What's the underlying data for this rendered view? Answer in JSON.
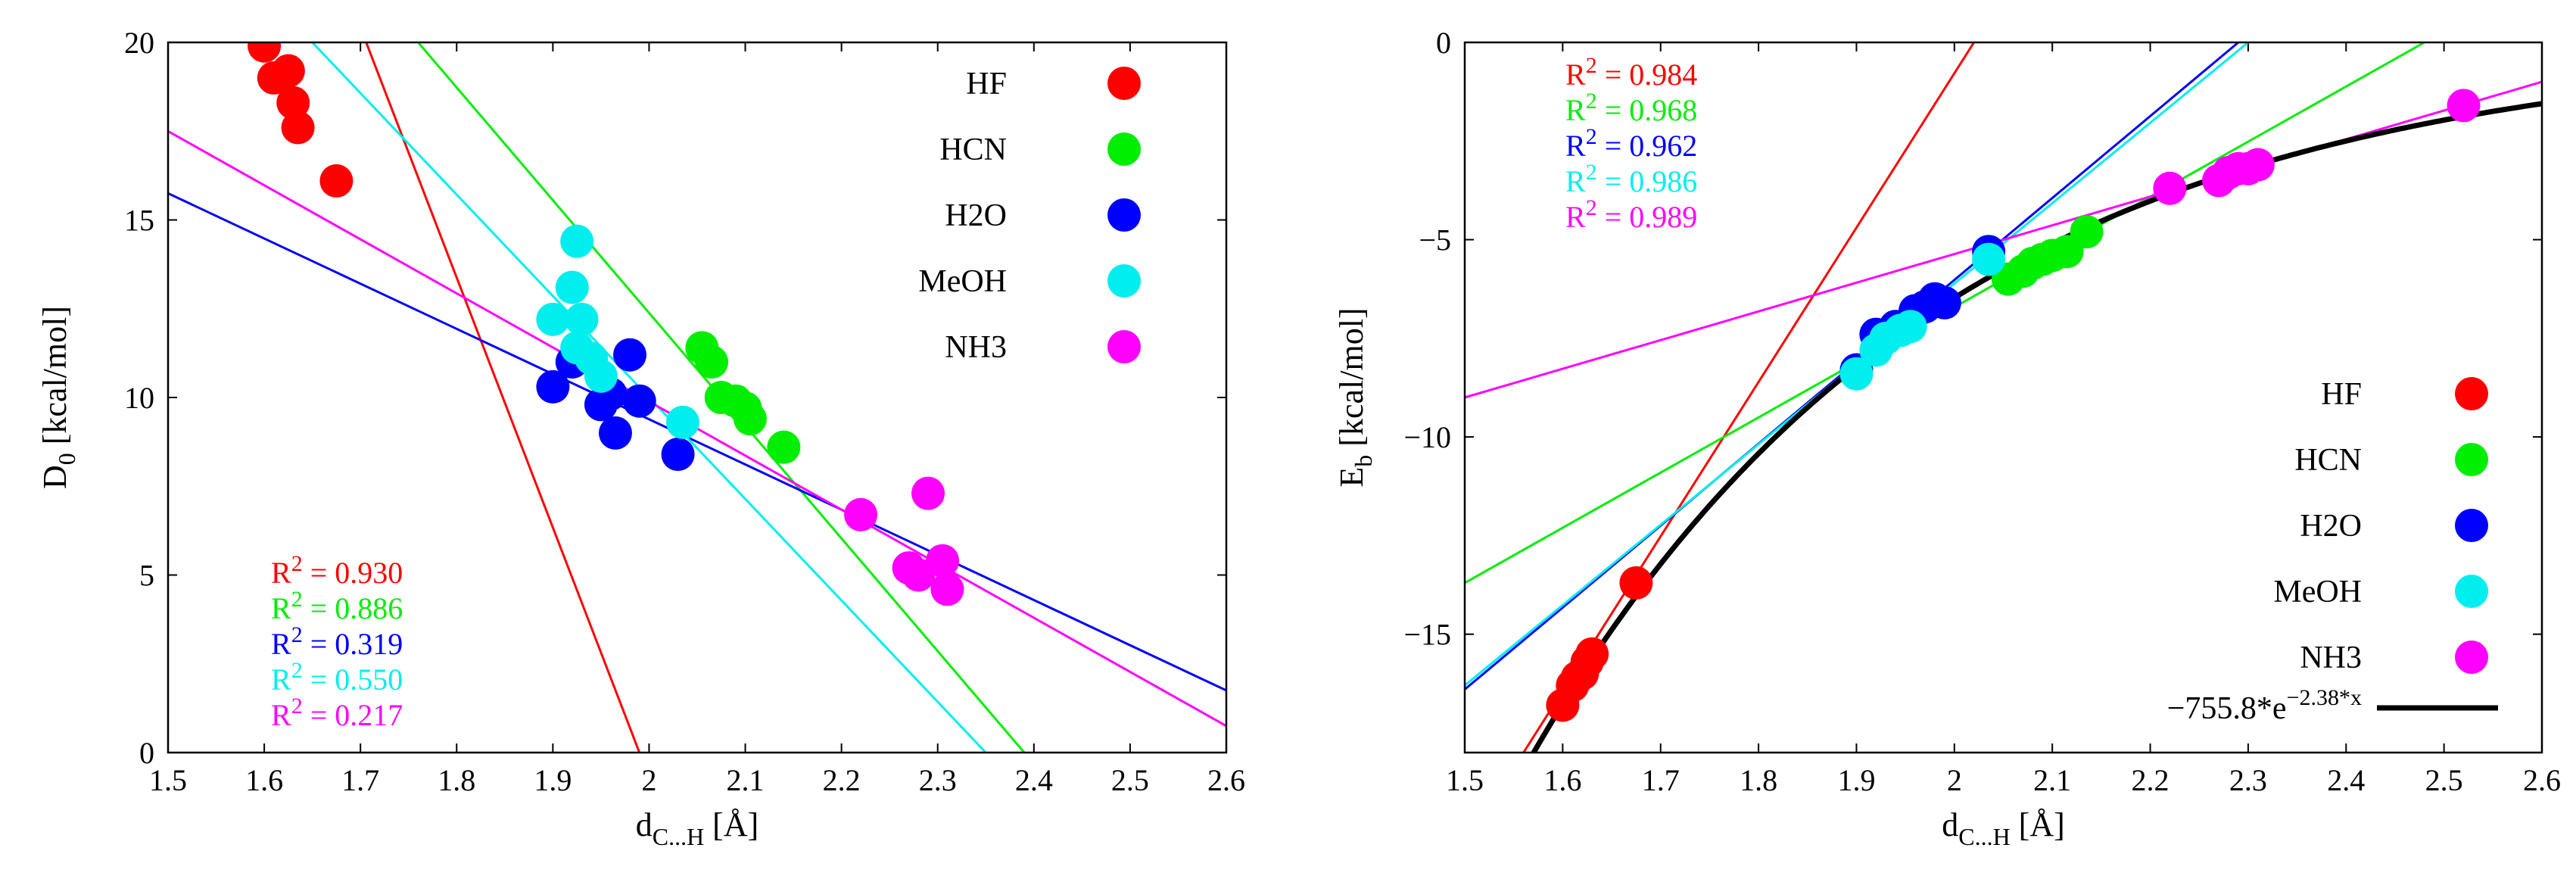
{
  "chart_data": [
    {
      "type": "scatter",
      "panel": "left",
      "ylabel_main": "D",
      "ylabel_sub": "0",
      "ylabel_rest": " [kcal/mol]",
      "xlabel_main": "d",
      "xlabel_sub": "C...H",
      "xlabel_rest": " [Å]",
      "xlim": [
        1.5,
        2.6
      ],
      "ylim": [
        0,
        20
      ],
      "xticks": [
        "1.5",
        "1.6",
        "1.7",
        "1.8",
        "1.9",
        "2",
        "2.1",
        "2.2",
        "2.3",
        "2.4",
        "2.5",
        "2.6"
      ],
      "yticks": [
        "0",
        "5",
        "10",
        "15",
        "20"
      ],
      "legend_position": "top-right",
      "series": [
        {
          "name": "HF",
          "color": "#ff0000",
          "points": [
            [
              1.6,
              19.9
            ],
            [
              1.61,
              19.0
            ],
            [
              1.625,
              19.2
            ],
            [
              1.63,
              18.3
            ],
            [
              1.635,
              17.6
            ],
            [
              1.675,
              16.1
            ]
          ],
          "fit": [
            [
              1.5,
              34.5
            ],
            [
              1.99,
              0
            ]
          ],
          "r2_label": "R",
          "r2_exp": "2",
          "r2_value": " = 0.930"
        },
        {
          "name": "HCN",
          "color": "#00ee00",
          "points": [
            [
              2.055,
              11.4
            ],
            [
              2.065,
              11.0
            ],
            [
              2.075,
              10.0
            ],
            [
              2.09,
              9.9
            ],
            [
              2.1,
              9.7
            ],
            [
              2.105,
              9.4
            ],
            [
              2.14,
              8.6
            ]
          ],
          "fit": [
            [
              1.76,
              20
            ],
            [
              2.39,
              0
            ]
          ],
          "r2_label": "R",
          "r2_exp": "2",
          "r2_value": " = 0.886"
        },
        {
          "name": "H2O",
          "color": "#0000ff",
          "points": [
            [
              1.9,
              10.3
            ],
            [
              1.92,
              11.0
            ],
            [
              1.95,
              9.8
            ],
            [
              1.96,
              10.1
            ],
            [
              1.965,
              9.0
            ],
            [
              1.98,
              11.2
            ],
            [
              1.99,
              9.9
            ],
            [
              2.03,
              8.4
            ]
          ],
          "fit": [
            [
              1.5,
              15.75
            ],
            [
              2.6,
              1.75
            ]
          ],
          "r2_label": "R",
          "r2_exp": "2",
          "r2_value": " = 0.319"
        },
        {
          "name": "MeOH",
          "color": "#00eeee",
          "points": [
            [
              1.925,
              14.4
            ],
            [
              1.92,
              13.1
            ],
            [
              1.93,
              12.2
            ],
            [
              1.9,
              12.2
            ],
            [
              1.925,
              11.4
            ],
            [
              1.94,
              11.1
            ],
            [
              1.95,
              10.6
            ],
            [
              2.035,
              9.3
            ]
          ],
          "fit": [
            [
              1.65,
              20
            ],
            [
              2.35,
              0
            ]
          ],
          "r2_label": "R",
          "r2_exp": "2",
          "r2_value": " = 0.550"
        },
        {
          "name": "NH3",
          "color": "#ff00ff",
          "points": [
            [
              2.22,
              6.7
            ],
            [
              2.29,
              7.3
            ],
            [
              2.27,
              5.2
            ],
            [
              2.28,
              5.0
            ],
            [
              2.305,
              5.4
            ],
            [
              2.31,
              4.6
            ]
          ],
          "fit": [
            [
              1.5,
              17.5
            ],
            [
              2.6,
              0.75
            ]
          ],
          "r2_label": "R",
          "r2_exp": "2",
          "r2_value": " = 0.217"
        }
      ]
    },
    {
      "type": "scatter",
      "panel": "right",
      "ylabel_main": "E",
      "ylabel_sub": "b",
      "ylabel_rest": " [kcal/mol]",
      "xlabel_main": "d",
      "xlabel_sub": "C...H",
      "xlabel_rest": " [Å]",
      "xlim": [
        1.5,
        2.6
      ],
      "ylim": [
        -18,
        0
      ],
      "xticks": [
        "1.5",
        "1.6",
        "1.7",
        "1.8",
        "1.9",
        "2",
        "2.1",
        "2.2",
        "2.3",
        "2.4",
        "2.5",
        "2.6"
      ],
      "yticks": [
        "0",
        "−5",
        "−10",
        "−15"
      ],
      "yticks_values": [
        0,
        -5,
        -10,
        -15
      ],
      "legend_position": "bottom-right",
      "exp_fit": {
        "A": -755.8,
        "k": -2.38,
        "color": "#000000",
        "label_pre": "−755.8*e",
        "label_exp": "−2.38*x"
      },
      "series": [
        {
          "name": "HF",
          "color": "#ff0000",
          "points": [
            [
              1.6,
              -16.8
            ],
            [
              1.61,
              -16.3
            ],
            [
              1.615,
              -16.1
            ],
            [
              1.62,
              -16.0
            ],
            [
              1.625,
              -15.7
            ],
            [
              1.63,
              -15.5
            ],
            [
              1.675,
              -13.7
            ]
          ],
          "fit": [
            [
              1.56,
              -18
            ],
            [
              2.02,
              0
            ]
          ],
          "r2_label": "R",
          "r2_exp": "2",
          "r2_value": " = 0.984"
        },
        {
          "name": "HCN",
          "color": "#00ee00",
          "points": [
            [
              2.055,
              -6.0
            ],
            [
              2.07,
              -5.8
            ],
            [
              2.08,
              -5.6
            ],
            [
              2.09,
              -5.5
            ],
            [
              2.1,
              -5.4
            ],
            [
              2.115,
              -5.3
            ],
            [
              2.135,
              -4.8
            ]
          ],
          "fit": [
            [
              1.5,
              -13.7
            ],
            [
              2.48,
              0
            ]
          ],
          "r2_label": "R",
          "r2_exp": "2",
          "r2_value": " = 0.968"
        },
        {
          "name": "H2O",
          "color": "#0000ff",
          "points": [
            [
              1.9,
              -8.3
            ],
            [
              1.92,
              -7.4
            ],
            [
              1.94,
              -7.2
            ],
            [
              1.96,
              -6.8
            ],
            [
              1.97,
              -6.7
            ],
            [
              1.98,
              -6.5
            ],
            [
              1.99,
              -6.6
            ],
            [
              2.035,
              -5.3
            ]
          ],
          "fit": [
            [
              1.5,
              -16.4
            ],
            [
              2.29,
              0
            ]
          ],
          "r2_label": "R",
          "r2_exp": "2",
          "r2_value": " = 0.962"
        },
        {
          "name": "MeOH",
          "color": "#00eeee",
          "points": [
            [
              1.9,
              -8.4
            ],
            [
              1.92,
              -7.8
            ],
            [
              1.93,
              -7.5
            ],
            [
              1.945,
              -7.3
            ],
            [
              1.955,
              -7.2
            ],
            [
              2.035,
              -5.5
            ]
          ],
          "fit": [
            [
              1.5,
              -16.3
            ],
            [
              2.3,
              0
            ]
          ],
          "r2_label": "R",
          "r2_exp": "2",
          "r2_value": " = 0.986"
        },
        {
          "name": "NH3",
          "color": "#ff00ff",
          "points": [
            [
              2.22,
              -3.7
            ],
            [
              2.27,
              -3.5
            ],
            [
              2.28,
              -3.3
            ],
            [
              2.29,
              -3.2
            ],
            [
              2.3,
              -3.2
            ],
            [
              2.31,
              -3.1
            ],
            [
              2.52,
              -1.6
            ]
          ],
          "fit": [
            [
              1.5,
              -9.0
            ],
            [
              2.6,
              -1.0
            ]
          ],
          "r2_label": "R",
          "r2_exp": "2",
          "r2_value": " = 0.989"
        }
      ]
    }
  ]
}
